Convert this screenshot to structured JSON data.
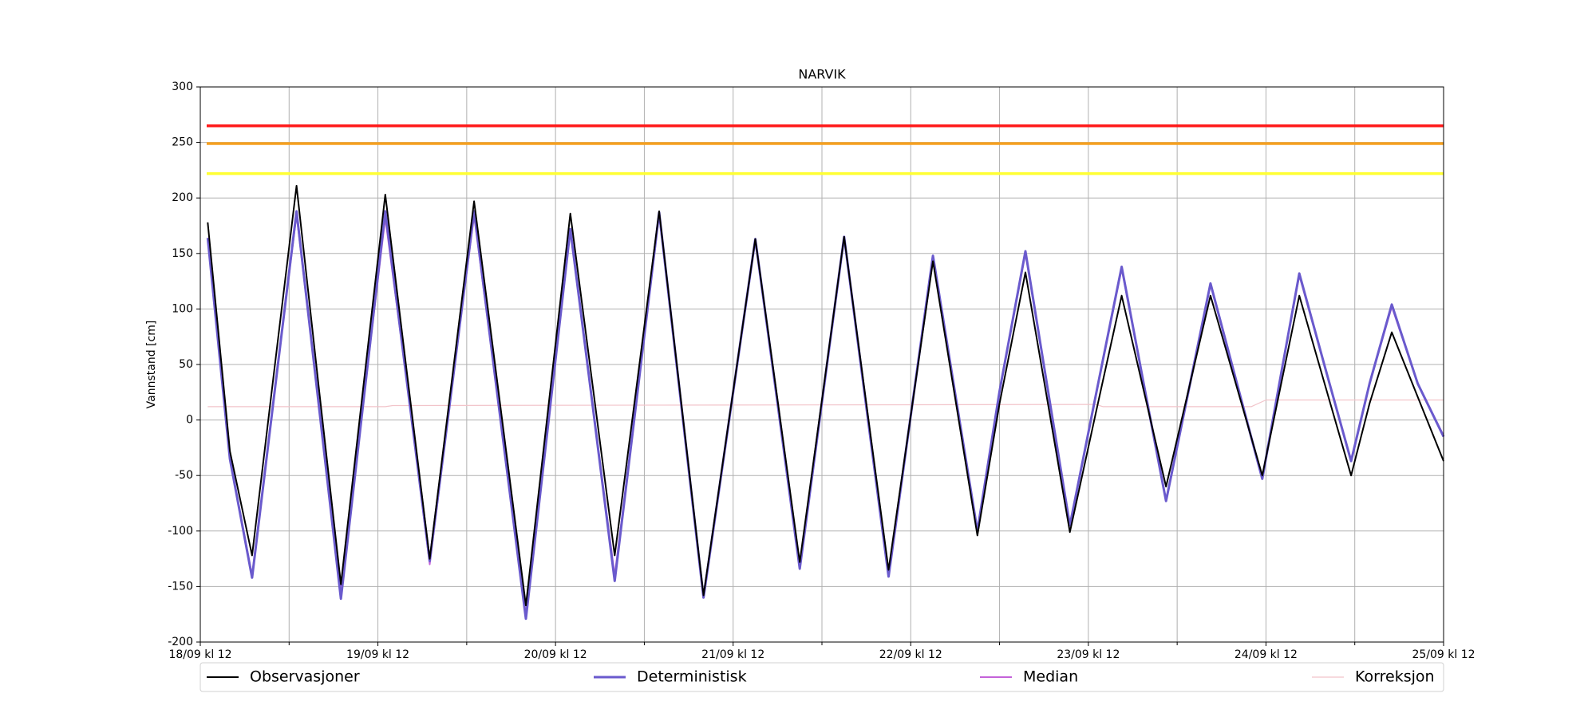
{
  "chart_data": {
    "type": "line",
    "title": "NARVIK",
    "ylabel": "Vannstand [cm]",
    "xlim": [
      0,
      168
    ],
    "ylim": [
      -200,
      300
    ],
    "yticks": [
      -200,
      -150,
      -100,
      -50,
      0,
      50,
      100,
      150,
      200,
      250,
      300
    ],
    "xticks": [
      {
        "value": 0,
        "label": "18/09 kl 12"
      },
      {
        "value": 24,
        "label": "19/09 kl 12"
      },
      {
        "value": 48,
        "label": "20/09 kl 12"
      },
      {
        "value": 72,
        "label": "21/09 kl 12"
      },
      {
        "value": 96,
        "label": "22/09 kl 12"
      },
      {
        "value": 120,
        "label": "23/09 kl 12"
      },
      {
        "value": 144,
        "label": "24/09 kl 12"
      },
      {
        "value": 168,
        "label": "25/09 kl 12"
      }
    ],
    "xminorticks": [
      12,
      36,
      60,
      84,
      108,
      132,
      156
    ],
    "grid": true,
    "legend": "bottom",
    "hlines": [
      {
        "value": 265,
        "color": "#ff1a1a"
      },
      {
        "value": 249,
        "color": "#f5a020"
      },
      {
        "value": 222,
        "color": "#ffff33"
      }
    ],
    "x": [
      1,
      4,
      7,
      10,
      13,
      16,
      19,
      22,
      25,
      28,
      31,
      34,
      37,
      40.5,
      44,
      47,
      50,
      53,
      56,
      59,
      62,
      65,
      68,
      71.5,
      75,
      78,
      81,
      84,
      87,
      90,
      93,
      96,
      99,
      102,
      105,
      108,
      111.5,
      114.5,
      117.5,
      121,
      124.5,
      127.5,
      130.5,
      133.5,
      136.5,
      140,
      143.5,
      146,
      148.5,
      152,
      155.5,
      158,
      161,
      164.5,
      168
    ],
    "series": [
      {
        "name": "Observasjoner",
        "color": "#000000",
        "width": 2,
        "values": [
          178,
          -28,
          -122,
          45,
          211,
          30,
          -148,
          28,
          203,
          38,
          -125,
          36,
          197,
          15,
          -167,
          10,
          186,
          32,
          -122,
          33,
          188,
          15,
          -158,
          3,
          163,
          18,
          -128,
          18,
          165,
          15,
          -135,
          4,
          143,
          20,
          -104,
          15,
          133,
          16,
          -101,
          6,
          112,
          26,
          -60,
          26,
          112,
          31,
          -50,
          31,
          112,
          31,
          -50,
          15,
          79,
          21,
          -37
        ]
      },
      {
        "name": "Deterministisk",
        "color": "#6a5acd",
        "width": 3,
        "values": [
          164,
          -35,
          -142,
          23,
          188,
          14,
          -161,
          14,
          188,
          30,
          -127,
          30,
          188,
          4,
          -179,
          -4,
          172,
          14,
          -145,
          21,
          187,
          13,
          -160,
          2,
          163,
          15,
          -134,
          16,
          165,
          12,
          -141,
          4,
          148,
          24,
          -100,
          26,
          152,
          28,
          -95,
          22,
          138,
          32,
          -73,
          25,
          123,
          35,
          -53,
          40,
          132,
          47,
          -37,
          33,
          104,
          33,
          -15
        ]
      },
      {
        "name": "Median",
        "color": "#c462d9",
        "width": 2,
        "values": [
          164,
          -35,
          -140,
          23,
          185,
          14,
          -155,
          14,
          182,
          30,
          -130,
          30,
          184,
          4,
          -175,
          -4,
          170,
          14,
          -140,
          21,
          185,
          13,
          -158,
          2,
          162,
          15,
          -132,
          16,
          164,
          12,
          -139,
          4,
          147,
          24,
          -99,
          26,
          150,
          28,
          -94,
          22,
          136,
          32,
          -72,
          25,
          122,
          35,
          -52,
          40,
          130,
          47,
          -36,
          33,
          102,
          33,
          -14
        ]
      },
      {
        "name": "Korreksjon",
        "color": "#f2c4ca",
        "width": 1.2,
        "x": [
          1,
          25,
          26,
          121,
          122,
          142,
          144,
          168
        ],
        "values": [
          12,
          12,
          13,
          14,
          12,
          12,
          18,
          18
        ]
      }
    ]
  }
}
